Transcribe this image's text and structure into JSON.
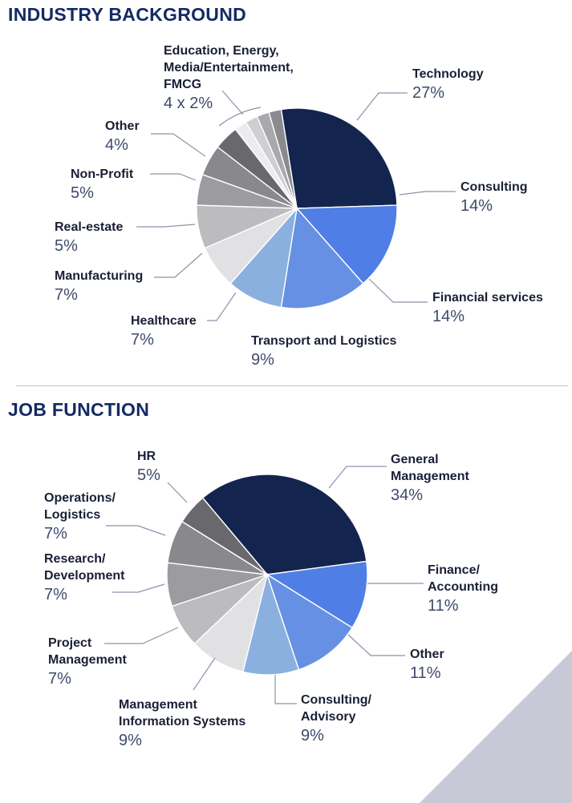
{
  "page": {
    "industry_title": "INDUSTRY BACKGROUND",
    "job_title": "JOB FUNCTION"
  },
  "chart_data": [
    {
      "type": "pie",
      "title": "INDUSTRY BACKGROUND",
      "slices": [
        {
          "label": "Technology",
          "value": 27,
          "display": "27%",
          "color": "#13254e"
        },
        {
          "label": "Consulting",
          "value": 14,
          "display": "14%",
          "color": "#4f7fe6"
        },
        {
          "label": "Financial services",
          "value": 14,
          "display": "14%",
          "color": "#6690e3"
        },
        {
          "label": "Transport and Logistics",
          "value": 9,
          "display": "9%",
          "color": "#8ab0df"
        },
        {
          "label": "Healthcare",
          "value": 7,
          "display": "7%",
          "color": "#e1e1e3"
        },
        {
          "label": "Manufacturing",
          "value": 7,
          "display": "7%",
          "color": "#bcbcbf"
        },
        {
          "label": "Real-estate",
          "value": 5,
          "display": "5%",
          "color": "#9c9ca0"
        },
        {
          "label": "Non-Profit",
          "value": 5,
          "display": "5%",
          "color": "#88888d"
        },
        {
          "label": "Other",
          "value": 4,
          "display": "4%",
          "color": "#68686d"
        },
        {
          "label": "Education",
          "value": 2,
          "color": "#ececee"
        },
        {
          "label": "Energy",
          "value": 2,
          "color": "#cfcfd2"
        },
        {
          "label": "Media/Entertainment",
          "value": 2,
          "color": "#a9a9ad"
        },
        {
          "label": "FMCG",
          "value": 2,
          "color": "#8a8a8f"
        }
      ],
      "group_label": {
        "lines": [
          "Education, Energy,",
          "Media/Entertainment,",
          "FMCG"
        ],
        "display": "4 x 2%"
      }
    },
    {
      "type": "pie",
      "title": "JOB FUNCTION",
      "slices": [
        {
          "label": "General Management",
          "lines": [
            "General",
            "Management"
          ],
          "value": 34,
          "display": "34%",
          "color": "#13254e"
        },
        {
          "label": "Finance/Accounting",
          "lines": [
            "Finance/",
            "Accounting"
          ],
          "value": 11,
          "display": "11%",
          "color": "#4f7fe6"
        },
        {
          "label": "Other",
          "lines": [
            "Other"
          ],
          "value": 11,
          "display": "11%",
          "color": "#6690e3"
        },
        {
          "label": "Consulting/Advisory",
          "lines": [
            "Consulting/",
            "Advisory"
          ],
          "value": 9,
          "display": "9%",
          "color": "#8ab0df"
        },
        {
          "label": "Management Information Systems",
          "lines": [
            "Management",
            "Information Systems"
          ],
          "value": 9,
          "display": "9%",
          "color": "#e1e1e3"
        },
        {
          "label": "Project Management",
          "lines": [
            "Project",
            "Management"
          ],
          "value": 7,
          "display": "7%",
          "color": "#bcbcbf"
        },
        {
          "label": "Research/Development",
          "lines": [
            "Research/",
            "Development"
          ],
          "value": 7,
          "display": "7%",
          "color": "#9c9ca0"
        },
        {
          "label": "Operations/Logistics",
          "lines": [
            "Operations/",
            "Logistics"
          ],
          "value": 7,
          "display": "7%",
          "color": "#88888d"
        },
        {
          "label": "HR",
          "lines": [
            "HR"
          ],
          "value": 5,
          "display": "5%",
          "color": "#68686d"
        }
      ]
    }
  ]
}
